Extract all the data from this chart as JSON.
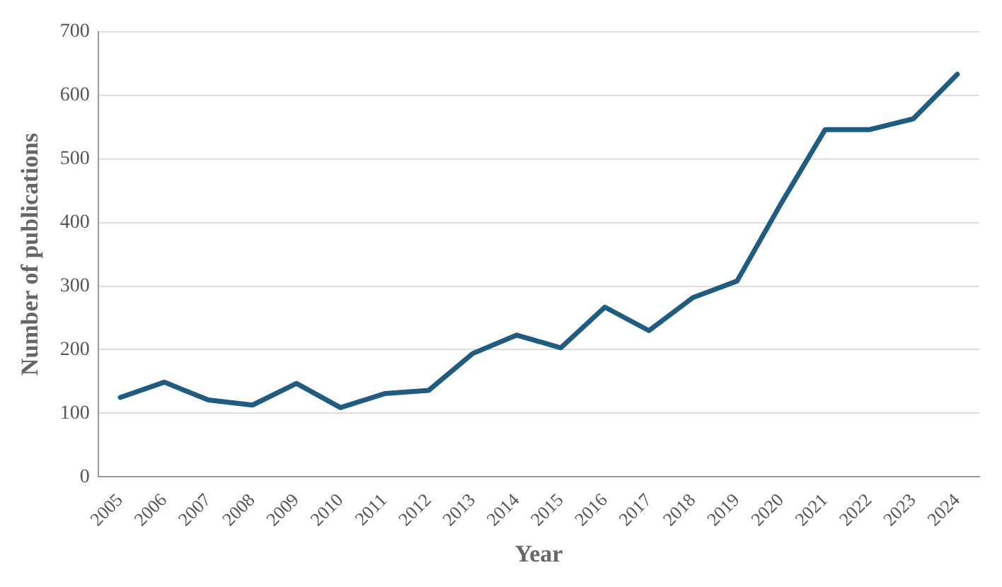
{
  "chart_data": {
    "type": "line",
    "xlabel": "Year",
    "ylabel": "Number of publications",
    "categories": [
      "2005",
      "2006",
      "2007",
      "2008",
      "2009",
      "2010",
      "2011",
      "2012",
      "2013",
      "2014",
      "2015",
      "2016",
      "2017",
      "2018",
      "2019",
      "2020",
      "2021",
      "2022",
      "2023",
      "2024"
    ],
    "series": [
      {
        "color": "#1f5c7f",
        "values": [
          125,
          149,
          121,
          113,
          147,
          109,
          131,
          136,
          194,
          223,
          203,
          267,
          230,
          282,
          308,
          430,
          546,
          546,
          563,
          633
        ]
      }
    ],
    "ylim": [
      0,
      700
    ],
    "yticks": [
      0,
      100,
      200,
      300,
      400,
      500,
      600,
      700
    ],
    "grid": "y",
    "legend": false,
    "marker": "none",
    "line_style": "solid"
  }
}
